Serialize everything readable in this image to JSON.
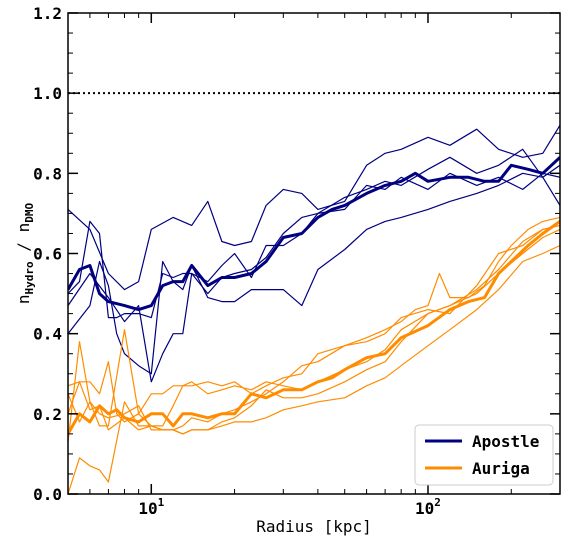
{
  "chart_data": {
    "type": "line",
    "xlabel": "Radius [kpc]",
    "ylabel": "n_Hydro / n_DMO",
    "ylabel_parts": {
      "n1": "n",
      "sub1": "Hydro",
      "sep": " / ",
      "n2": "n",
      "sub2": "DMO"
    },
    "x_scale": "log",
    "xlim": [
      5,
      300
    ],
    "ylim": [
      0.0,
      1.2
    ],
    "x_tick_labels": [
      {
        "value": 10,
        "base": "10",
        "exp": "1"
      },
      {
        "value": 100,
        "base": "10",
        "exp": "2"
      }
    ],
    "y_ticks": [
      0.0,
      0.2,
      0.4,
      0.6,
      0.8,
      1.0,
      1.2
    ],
    "y_tick_labels": [
      "0.0",
      "0.2",
      "0.4",
      "0.6",
      "0.8",
      "1.0",
      "1.2"
    ],
    "reference_line": {
      "y": 1.0,
      "style": "dotted",
      "color": "#000000"
    },
    "grid": false,
    "legend_position": "lower-right",
    "legend": [
      {
        "label": "Apostle",
        "color": "#000080"
      },
      {
        "label": "Auriga",
        "color": "#ff8c00"
      }
    ],
    "series": [
      {
        "group": "Apostle",
        "color": "#000080",
        "style": "median",
        "x": [
          5,
          5.5,
          6,
          6.5,
          7,
          8,
          9,
          10,
          11,
          12,
          13,
          14,
          16,
          18,
          20,
          23,
          26,
          30,
          35,
          40,
          45,
          50,
          60,
          70,
          80,
          90,
          100,
          120,
          140,
          160,
          180,
          200,
          230,
          260,
          300
        ],
        "y": [
          0.51,
          0.56,
          0.57,
          0.5,
          0.48,
          0.47,
          0.46,
          0.47,
          0.52,
          0.53,
          0.53,
          0.57,
          0.52,
          0.54,
          0.54,
          0.55,
          0.58,
          0.64,
          0.65,
          0.69,
          0.71,
          0.72,
          0.75,
          0.77,
          0.78,
          0.8,
          0.78,
          0.79,
          0.79,
          0.78,
          0.78,
          0.82,
          0.81,
          0.8,
          0.84
        ]
      },
      {
        "group": "Apostle",
        "color": "#000080",
        "style": "thin",
        "x": [
          5,
          6,
          7,
          8,
          9,
          10,
          12,
          14,
          16,
          18,
          20,
          23,
          26,
          30,
          35,
          40,
          50,
          60,
          70,
          80,
          100,
          120,
          150,
          180,
          220,
          260,
          300
        ],
        "y": [
          0.71,
          0.66,
          0.55,
          0.51,
          0.53,
          0.66,
          0.69,
          0.67,
          0.73,
          0.63,
          0.62,
          0.63,
          0.72,
          0.76,
          0.75,
          0.71,
          0.73,
          0.82,
          0.85,
          0.86,
          0.89,
          0.87,
          0.91,
          0.86,
          0.84,
          0.85,
          0.92
        ]
      },
      {
        "group": "Apostle",
        "color": "#000080",
        "style": "thin",
        "x": [
          5,
          5.5,
          6,
          6.5,
          7,
          7.5,
          8,
          9,
          10,
          11,
          12,
          13,
          14,
          16,
          18,
          20,
          23,
          26,
          30,
          35,
          40,
          50,
          60,
          70,
          80,
          100,
          120,
          150,
          180,
          220,
          260,
          300
        ],
        "y": [
          0.5,
          0.53,
          0.68,
          0.65,
          0.44,
          0.44,
          0.45,
          0.45,
          0.44,
          0.55,
          0.54,
          0.55,
          0.55,
          0.53,
          0.57,
          0.6,
          0.54,
          0.62,
          0.62,
          0.65,
          0.7,
          0.74,
          0.76,
          0.78,
          0.77,
          0.81,
          0.84,
          0.8,
          0.82,
          0.86,
          0.79,
          0.72
        ]
      },
      {
        "group": "Apostle",
        "color": "#000080",
        "style": "thin",
        "x": [
          5,
          6,
          6.5,
          7,
          7.5,
          8,
          9,
          10,
          11,
          12,
          13,
          14,
          16,
          18,
          20,
          23,
          26,
          30,
          35,
          40,
          50,
          60,
          70,
          80,
          100,
          120,
          150,
          180,
          220,
          260,
          300
        ],
        "y": [
          0.4,
          0.47,
          0.58,
          0.52,
          0.4,
          0.35,
          0.32,
          0.3,
          0.58,
          0.53,
          0.51,
          0.57,
          0.49,
          0.48,
          0.48,
          0.51,
          0.51,
          0.51,
          0.47,
          0.56,
          0.61,
          0.66,
          0.68,
          0.69,
          0.71,
          0.73,
          0.75,
          0.77,
          0.8,
          0.79,
          0.82
        ]
      },
      {
        "group": "Apostle",
        "color": "#000080",
        "style": "thin",
        "x": [
          5,
          6,
          7,
          8,
          9,
          10,
          11,
          12,
          13,
          14,
          16,
          18,
          20,
          23,
          26,
          30,
          35,
          40,
          50,
          60,
          70,
          80,
          100,
          120,
          150,
          180,
          220,
          260,
          300
        ],
        "y": [
          0.47,
          0.55,
          0.49,
          0.43,
          0.47,
          0.28,
          0.35,
          0.4,
          0.4,
          0.55,
          0.5,
          0.54,
          0.55,
          0.56,
          0.59,
          0.65,
          0.69,
          0.7,
          0.71,
          0.77,
          0.76,
          0.79,
          0.76,
          0.8,
          0.77,
          0.79,
          0.76,
          0.8,
          0.79
        ]
      },
      {
        "group": "Auriga",
        "color": "#ff8c00",
        "style": "median",
        "x": [
          5,
          5.5,
          6,
          6.5,
          7,
          7.5,
          8,
          9,
          10,
          11,
          12,
          13,
          14,
          16,
          18,
          20,
          23,
          26,
          30,
          35,
          40,
          45,
          50,
          60,
          70,
          80,
          100,
          120,
          140,
          160,
          180,
          200,
          230,
          260,
          300
        ],
        "y": [
          0.15,
          0.2,
          0.18,
          0.22,
          0.2,
          0.21,
          0.19,
          0.18,
          0.2,
          0.2,
          0.17,
          0.2,
          0.2,
          0.19,
          0.2,
          0.2,
          0.25,
          0.24,
          0.26,
          0.26,
          0.28,
          0.29,
          0.31,
          0.34,
          0.35,
          0.39,
          0.42,
          0.46,
          0.48,
          0.49,
          0.55,
          0.58,
          0.62,
          0.65,
          0.68
        ]
      },
      {
        "group": "Auriga",
        "color": "#ff8c00",
        "style": "thin",
        "x": [
          5,
          5.5,
          6,
          6.5,
          7,
          7.5,
          8,
          9,
          10,
          11,
          12,
          13,
          14,
          16,
          18,
          20,
          23,
          26,
          30,
          35,
          40,
          50,
          60,
          70,
          80,
          90,
          100,
          110,
          120,
          140,
          160,
          180,
          200,
          230,
          260,
          300
        ],
        "y": [
          0.27,
          0.28,
          0.28,
          0.25,
          0.33,
          0.2,
          0.18,
          0.2,
          0.17,
          0.17,
          0.22,
          0.27,
          0.27,
          0.28,
          0.27,
          0.28,
          0.25,
          0.27,
          0.29,
          0.3,
          0.35,
          0.37,
          0.39,
          0.41,
          0.43,
          0.46,
          0.47,
          0.55,
          0.49,
          0.49,
          0.52,
          0.58,
          0.62,
          0.66,
          0.68,
          0.69
        ]
      },
      {
        "group": "Auriga",
        "color": "#ff8c00",
        "style": "thin",
        "x": [
          5,
          5.5,
          6,
          6.5,
          7,
          8,
          9,
          10,
          11,
          12,
          13,
          14,
          16,
          18,
          20,
          23,
          26,
          30,
          35,
          40,
          50,
          60,
          70,
          80,
          100,
          120,
          150,
          180,
          220,
          260,
          300
        ],
        "y": [
          0.13,
          0.38,
          0.23,
          0.17,
          0.17,
          0.41,
          0.2,
          0.25,
          0.25,
          0.27,
          0.27,
          0.28,
          0.25,
          0.26,
          0.27,
          0.26,
          0.28,
          0.27,
          0.26,
          0.28,
          0.31,
          0.33,
          0.36,
          0.41,
          0.45,
          0.47,
          0.51,
          0.56,
          0.63,
          0.66,
          0.67
        ]
      },
      {
        "group": "Auriga",
        "color": "#ff8c00",
        "style": "thin",
        "x": [
          5,
          5.5,
          6,
          6.5,
          7,
          8,
          9,
          10,
          11,
          12,
          13,
          14,
          16,
          18,
          20,
          23,
          26,
          30,
          35,
          40,
          50,
          60,
          70,
          80,
          100,
          120,
          150,
          180,
          220,
          260,
          300
        ],
        "y": [
          0.25,
          0.18,
          0.23,
          0.2,
          0.19,
          0.2,
          0.22,
          0.16,
          0.16,
          0.16,
          0.17,
          0.19,
          0.18,
          0.2,
          0.21,
          0.23,
          0.25,
          0.28,
          0.32,
          0.33,
          0.37,
          0.38,
          0.4,
          0.44,
          0.46,
          0.45,
          0.52,
          0.6,
          0.62,
          0.66,
          0.67
        ]
      },
      {
        "group": "Auriga",
        "color": "#ff8c00",
        "style": "thin",
        "x": [
          5,
          5.5,
          6,
          6.5,
          7,
          8,
          9,
          10,
          11,
          12,
          13,
          14,
          16,
          18,
          20,
          23,
          26,
          30,
          35,
          40,
          50,
          60,
          70,
          80,
          100,
          120,
          150,
          180,
          220,
          260,
          300
        ],
        "y": [
          0.0,
          0.09,
          0.07,
          0.06,
          0.03,
          0.23,
          0.17,
          0.17,
          0.16,
          0.16,
          0.15,
          0.16,
          0.16,
          0.17,
          0.18,
          0.18,
          0.19,
          0.21,
          0.22,
          0.23,
          0.24,
          0.27,
          0.29,
          0.32,
          0.37,
          0.41,
          0.46,
          0.51,
          0.58,
          0.6,
          0.62
        ]
      },
      {
        "group": "Auriga",
        "color": "#ff8c00",
        "style": "thin",
        "x": [
          5,
          5.5,
          6,
          6.5,
          7,
          8,
          9,
          10,
          11,
          12,
          13,
          14,
          16,
          18,
          20,
          23,
          26,
          30,
          35,
          40,
          50,
          60,
          70,
          80,
          100,
          120,
          150,
          180,
          220,
          260,
          300
        ],
        "y": [
          0.2,
          0.28,
          0.21,
          0.22,
          0.16,
          0.19,
          0.16,
          0.17,
          0.16,
          0.16,
          0.15,
          0.16,
          0.16,
          0.18,
          0.19,
          0.22,
          0.26,
          0.24,
          0.24,
          0.25,
          0.28,
          0.31,
          0.33,
          0.38,
          0.45,
          0.47,
          0.5,
          0.55,
          0.6,
          0.64,
          0.66
        ]
      }
    ]
  }
}
